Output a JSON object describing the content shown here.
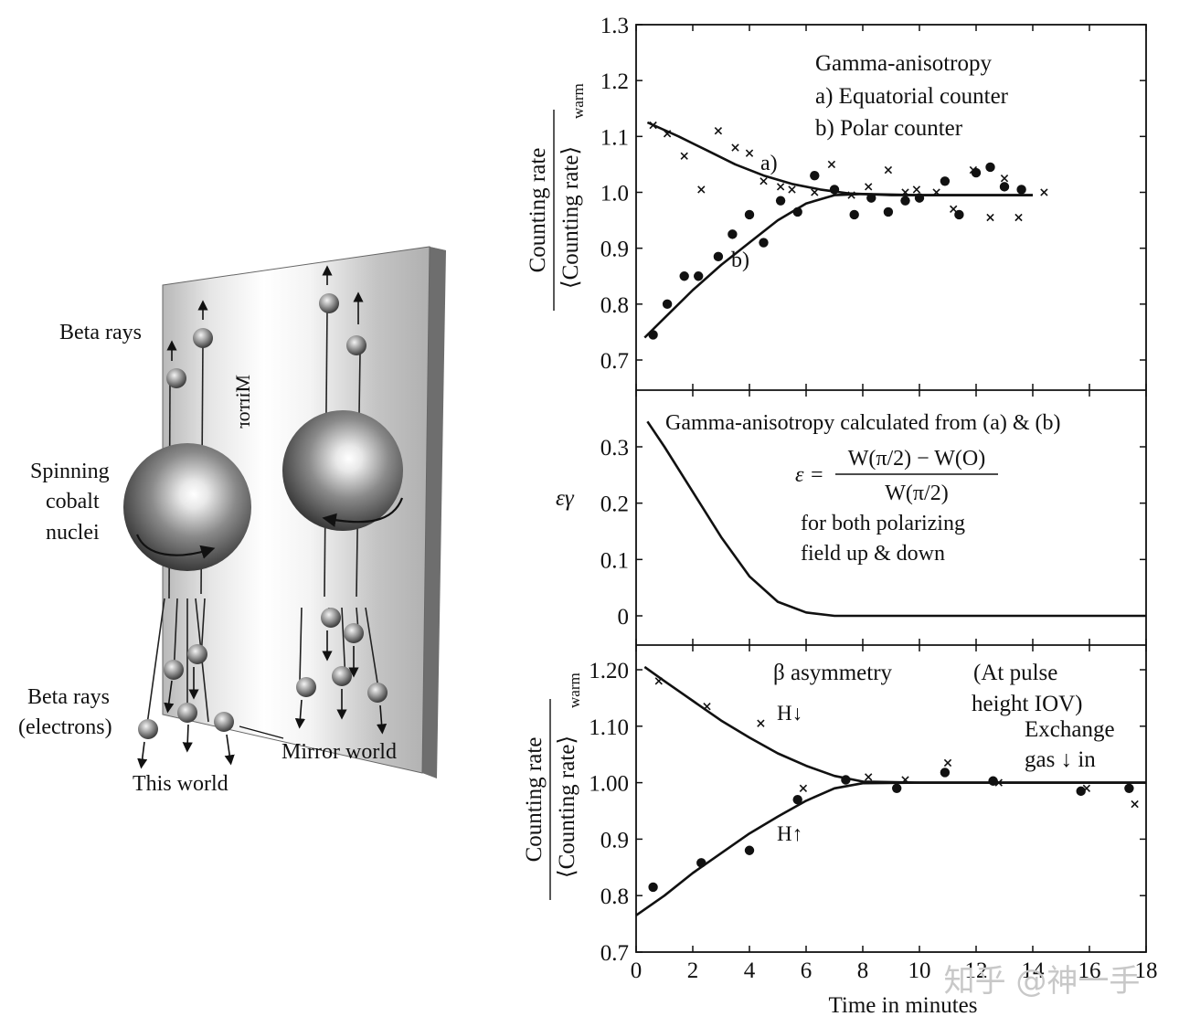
{
  "illustration": {
    "beta_rays_top": "Beta rays",
    "spinning_line1": "Spinning",
    "spinning_line2": "cobalt",
    "spinning_line3": "nuclei",
    "beta_rays_bottom_line1": "Beta rays",
    "beta_rays_bottom_line2": "(electrons)",
    "this_world": "This world",
    "mirror_world": "Mirror world",
    "mirror_label": "Mirror"
  },
  "panel_a": {
    "legend_line1": "Gamma-anisotropy",
    "legend_line2": "a) Equatorial counter",
    "legend_line3": "b) Polar counter",
    "curve_a_label": "a)",
    "curve_b_label": "b)",
    "ylabel_top": "Counting rate",
    "ylabel_bottom": "⟨Counting rate⟩",
    "ylabel_sub": "warm"
  },
  "panel_b": {
    "title": "Gamma-anisotropy calculated from (a) & (b)",
    "eq_lhs": "ε =",
    "eq_num": "W(π/2) − W(O)",
    "eq_den": "W(π/2)",
    "note_line1": "for both polarizing",
    "note_line2": "field up & down",
    "ylabel": "εγ"
  },
  "panel_c": {
    "beta_label": "β asymmetry",
    "pulse_line1": "(At pulse",
    "pulse_line2": "height IOV)",
    "exchange_line1": "Exchange",
    "exchange_line2": "gas ↓ in",
    "h_down": "H↓",
    "h_up": "H↑",
    "ylabel_top": "Counting rate",
    "ylabel_bottom": "⟨Counting rate⟩",
    "ylabel_sub": "warm"
  },
  "xlabel": "Time in minutes",
  "watermark": "知乎 @神一手",
  "chart_data": [
    {
      "type": "scatter",
      "xlim": [
        0,
        18
      ],
      "ylim": [
        0.65,
        1.3
      ],
      "yticks": [
        "0.7",
        "0.8",
        "0.9",
        "1.0",
        "1.1",
        "1.2",
        "1.3"
      ],
      "ytick_values": [
        0.7,
        0.8,
        0.9,
        1.0,
        1.1,
        1.2,
        1.3
      ],
      "series": [
        {
          "name": "a) Equatorial counter",
          "marker": "x",
          "points": [
            [
              0.6,
              1.12
            ],
            [
              1.1,
              1.105
            ],
            [
              1.7,
              1.065
            ],
            [
              2.3,
              1.005
            ],
            [
              2.9,
              1.11
            ],
            [
              3.5,
              1.08
            ],
            [
              4.0,
              1.07
            ],
            [
              4.5,
              1.02
            ],
            [
              5.1,
              1.01
            ],
            [
              5.5,
              1.005
            ],
            [
              6.3,
              1.0
            ],
            [
              6.9,
              1.05
            ],
            [
              7.6,
              0.995
            ],
            [
              8.2,
              1.01
            ],
            [
              8.9,
              1.04
            ],
            [
              9.5,
              1.0
            ],
            [
              9.9,
              1.005
            ],
            [
              10.6,
              1.0
            ],
            [
              11.2,
              0.97
            ],
            [
              11.9,
              1.04
            ],
            [
              12.5,
              0.955
            ],
            [
              13.0,
              1.025
            ],
            [
              13.5,
              0.955
            ],
            [
              14.4,
              1.0
            ]
          ]
        },
        {
          "name": "b) Polar counter",
          "marker": "dot",
          "points": [
            [
              0.6,
              0.745
            ],
            [
              1.1,
              0.8
            ],
            [
              1.7,
              0.85
            ],
            [
              2.2,
              0.85
            ],
            [
              2.9,
              0.885
            ],
            [
              3.4,
              0.925
            ],
            [
              4.0,
              0.96
            ],
            [
              4.5,
              0.91
            ],
            [
              5.1,
              0.985
            ],
            [
              5.7,
              0.965
            ],
            [
              6.3,
              1.03
            ],
            [
              7.0,
              1.005
            ],
            [
              7.7,
              0.96
            ],
            [
              8.3,
              0.99
            ],
            [
              8.9,
              0.965
            ],
            [
              9.5,
              0.985
            ],
            [
              10.0,
              0.99
            ],
            [
              10.9,
              1.02
            ],
            [
              11.4,
              0.96
            ],
            [
              12.0,
              1.035
            ],
            [
              12.5,
              1.045
            ],
            [
              13.0,
              1.01
            ],
            [
              13.6,
              1.005
            ]
          ]
        },
        {
          "name": "curve a",
          "marker": "line",
          "points": [
            [
              0.4,
              1.125
            ],
            [
              1.5,
              1.1
            ],
            [
              2.5,
              1.075
            ],
            [
              3.5,
              1.05
            ],
            [
              4.5,
              1.03
            ],
            [
              5.5,
              1.015
            ],
            [
              6.5,
              1.005
            ],
            [
              7.5,
              0.998
            ],
            [
              9,
              0.995
            ],
            [
              10.5,
              0.995
            ],
            [
              12,
              0.995
            ],
            [
              14,
              0.995
            ]
          ]
        },
        {
          "name": "curve b",
          "marker": "line",
          "points": [
            [
              0.3,
              0.74
            ],
            [
              1,
              0.775
            ],
            [
              2,
              0.825
            ],
            [
              3,
              0.87
            ],
            [
              4,
              0.91
            ],
            [
              5,
              0.95
            ],
            [
              6,
              0.98
            ],
            [
              7,
              0.995
            ],
            [
              8,
              0.997
            ],
            [
              10,
              0.995
            ],
            [
              12,
              0.995
            ],
            [
              14,
              0.995
            ]
          ]
        }
      ]
    },
    {
      "type": "line",
      "xlim": [
        0,
        18
      ],
      "ylim": [
        -0.02,
        0.39
      ],
      "yticks": [
        "0",
        "0.1",
        "0.2",
        "0.3"
      ],
      "ytick_values": [
        0,
        0.1,
        0.2,
        0.3
      ],
      "series": [
        {
          "name": "εγ",
          "points": [
            [
              0.4,
              0.345
            ],
            [
              1,
              0.3
            ],
            [
              2,
              0.22
            ],
            [
              3,
              0.14
            ],
            [
              4,
              0.07
            ],
            [
              5,
              0.025
            ],
            [
              6,
              0.006
            ],
            [
              7,
              0.0
            ],
            [
              8,
              0.0
            ],
            [
              12,
              0.0
            ],
            [
              16,
              0.0
            ],
            [
              18,
              0.0
            ]
          ]
        }
      ]
    },
    {
      "type": "scatter",
      "xlim": [
        0,
        18
      ],
      "ylim": [
        0.7,
        1.2
      ],
      "xticks": [
        "0",
        "2",
        "4",
        "6",
        "8",
        "10",
        "12",
        "14",
        "16",
        "18"
      ],
      "xtick_values": [
        0,
        2,
        4,
        6,
        8,
        10,
        12,
        14,
        16,
        18
      ],
      "yticks": [
        "0.7",
        "0.8",
        "0.9",
        "1.00",
        "1.10",
        "1.20"
      ],
      "ytick_values": [
        0.7,
        0.8,
        0.9,
        1.0,
        1.1,
        1.2
      ],
      "series": [
        {
          "name": "H↓",
          "marker": "x",
          "points": [
            [
              0.8,
              1.18
            ],
            [
              2.5,
              1.135
            ],
            [
              4.4,
              1.105
            ],
            [
              5.9,
              0.99
            ],
            [
              8.2,
              1.01
            ],
            [
              9.5,
              1.005
            ],
            [
              11.0,
              1.035
            ],
            [
              12.8,
              1.0
            ],
            [
              15.9,
              0.99
            ],
            [
              17.6,
              0.962
            ]
          ]
        },
        {
          "name": "H↑",
          "marker": "dot",
          "points": [
            [
              0.6,
              0.815
            ],
            [
              2.3,
              0.858
            ],
            [
              4.0,
              0.88
            ],
            [
              5.7,
              0.97
            ],
            [
              7.4,
              1.005
            ],
            [
              9.2,
              0.99
            ],
            [
              10.9,
              1.018
            ],
            [
              12.6,
              1.003
            ],
            [
              15.7,
              0.985
            ],
            [
              17.4,
              0.99
            ]
          ]
        },
        {
          "name": "curve H↓",
          "marker": "line",
          "points": [
            [
              0.3,
              1.205
            ],
            [
              1,
              1.18
            ],
            [
              2,
              1.145
            ],
            [
              3,
              1.11
            ],
            [
              4,
              1.08
            ],
            [
              5,
              1.052
            ],
            [
              6,
              1.03
            ],
            [
              7,
              1.012
            ],
            [
              8,
              1.002
            ],
            [
              10,
              1.0
            ],
            [
              14,
              1.0
            ],
            [
              18,
              1.0
            ]
          ]
        },
        {
          "name": "curve H↑",
          "marker": "line",
          "points": [
            [
              0,
              0.765
            ],
            [
              1,
              0.8
            ],
            [
              2,
              0.84
            ],
            [
              3,
              0.875
            ],
            [
              4,
              0.91
            ],
            [
              5,
              0.94
            ],
            [
              6,
              0.968
            ],
            [
              7,
              0.99
            ],
            [
              8,
              0.999
            ],
            [
              10,
              1.0
            ],
            [
              14,
              1.0
            ],
            [
              18,
              1.0
            ]
          ]
        }
      ]
    }
  ]
}
